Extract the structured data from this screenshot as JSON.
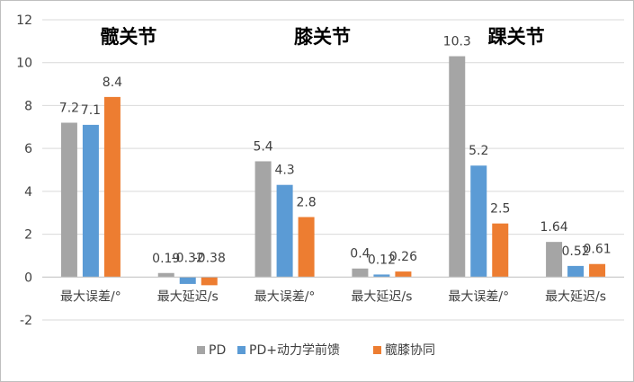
{
  "colors": {
    "pd": "#a5a5a5",
    "pd_feedforward": "#5b9bd5",
    "hip_knee": "#ed7d31",
    "grid": "#d9d9d9",
    "axis": "#bfbfbf",
    "frame": "#bfbfbf"
  },
  "chart_data": {
    "type": "bar",
    "grid": true,
    "legend_position": "bottom",
    "ylim": [
      -2,
      12
    ],
    "yticks": [
      "-2",
      "0",
      "2",
      "4",
      "6",
      "8",
      "10",
      "12"
    ],
    "group_titles": [
      "髋关节",
      "膝关节",
      "踝关节"
    ],
    "categories": [
      "最大误差/°",
      "最大延迟/s",
      "最大误差/°",
      "最大延迟/s",
      "最大误差/°",
      "最大延迟/s"
    ],
    "series": [
      {
        "name": "PD",
        "color_key": "pd",
        "values": [
          7.2,
          0.19,
          5.4,
          0.4,
          10.3,
          1.64
        ],
        "labels": [
          "7.2",
          "0.19",
          "5.4",
          "0.4",
          "10.3",
          "1.64"
        ]
      },
      {
        "name": "PD+动力学前馈",
        "color_key": "pd_feedforward",
        "values": [
          7.1,
          -0.32,
          4.3,
          0.12,
          5.2,
          0.52
        ],
        "labels": [
          "7.1",
          "-0.32",
          "4.3",
          "0.12",
          "5.2",
          "0.52"
        ]
      },
      {
        "name": "髋膝协同",
        "color_key": "hip_knee",
        "values": [
          8.4,
          -0.38,
          2.8,
          0.26,
          2.5,
          0.61
        ],
        "labels": [
          "8.4",
          "-0.38",
          "2.8",
          "0.26",
          "2.5",
          "0.61"
        ]
      }
    ]
  }
}
